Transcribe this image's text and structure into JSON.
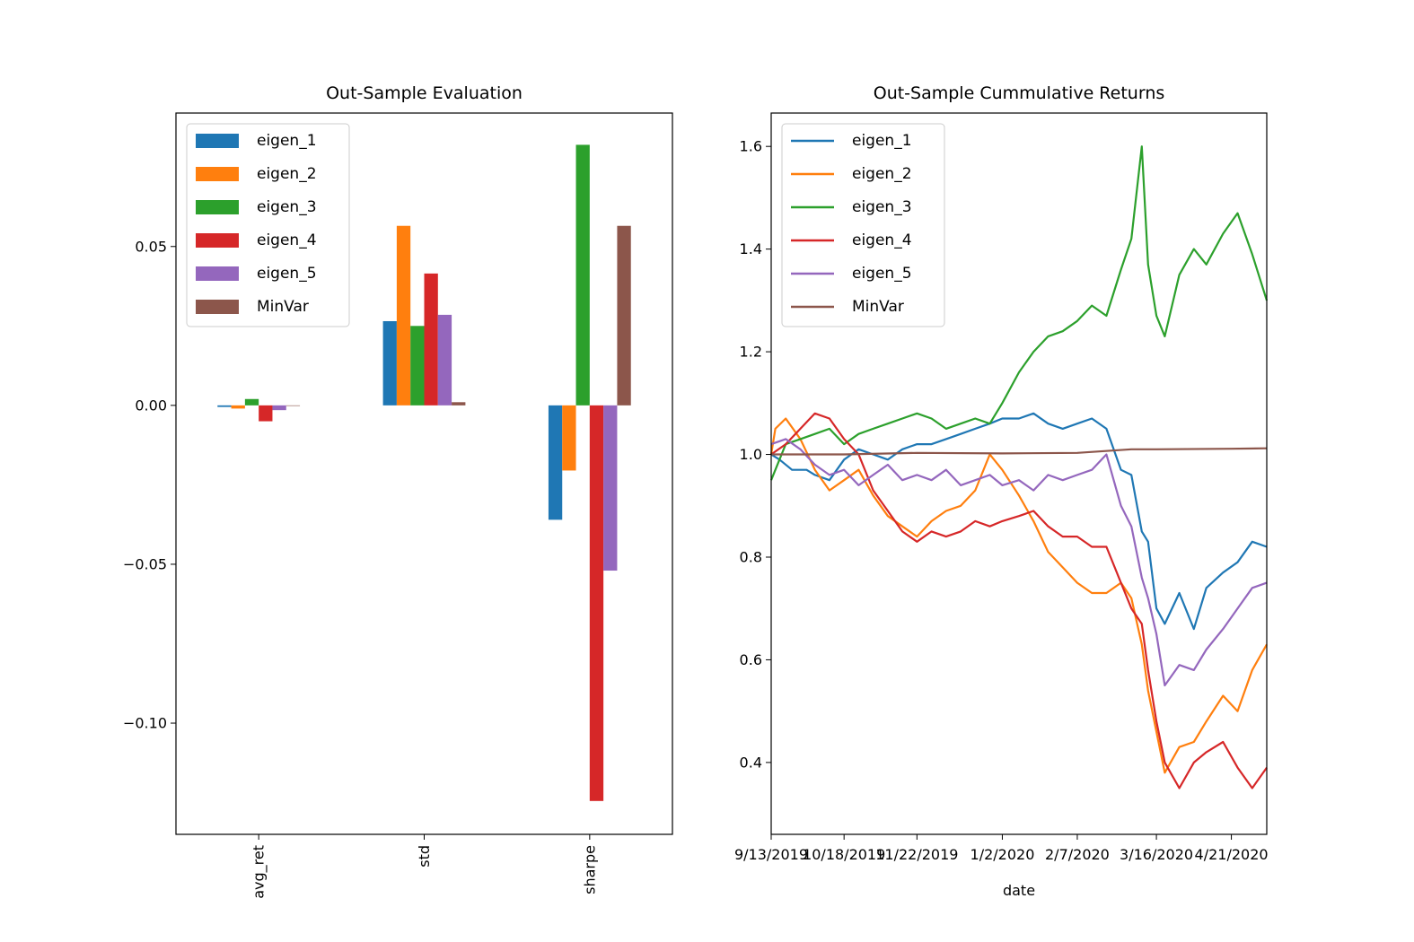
{
  "chart_data": [
    {
      "type": "bar",
      "title": "Out-Sample Evaluation",
      "xlabel": "",
      "ylabel": "",
      "categories": [
        "avg_ret",
        "std",
        "sharpe"
      ],
      "ylim": [
        -0.135,
        0.092
      ],
      "yticks": [
        0.05,
        0.0,
        -0.05,
        -0.1
      ],
      "ytick_labels": [
        "0.05",
        "0.00",
        "−0.05",
        "−0.10"
      ],
      "legend_position": "upper left",
      "grid": false,
      "series": [
        {
          "name": "eigen_1",
          "color": "#1f77b4",
          "values": [
            -0.0005,
            0.0265,
            -0.036
          ]
        },
        {
          "name": "eigen_2",
          "color": "#ff7f0e",
          "values": [
            -0.001,
            0.0565,
            -0.0205
          ]
        },
        {
          "name": "eigen_3",
          "color": "#2ca02c",
          "values": [
            0.002,
            0.025,
            0.082
          ]
        },
        {
          "name": "eigen_4",
          "color": "#d62728",
          "values": [
            -0.005,
            0.0415,
            -0.1245
          ]
        },
        {
          "name": "eigen_5",
          "color": "#9467bd",
          "values": [
            -0.0015,
            0.0285,
            -0.052
          ]
        },
        {
          "name": "MinVar",
          "color": "#8c564b",
          "values": [
            0.0,
            0.001,
            0.0565
          ]
        }
      ]
    },
    {
      "type": "line",
      "title": "Out-Sample Cummulative Returns",
      "xlabel": "date",
      "ylabel": "",
      "x_start": "9/13/2019",
      "x_end": "5/8/2020",
      "xticks": [
        "9/13/2019",
        "10/18/2019",
        "11/22/2019",
        "1/2/2020",
        "2/7/2020",
        "3/16/2020",
        "4/21/2020"
      ],
      "ylim": [
        0.26,
        1.665
      ],
      "yticks": [
        0.4,
        0.6,
        0.8,
        1.0,
        1.2,
        1.4,
        1.6
      ],
      "ytick_labels": [
        "0.4",
        "0.6",
        "0.8",
        "1.0",
        "1.2",
        "1.4",
        "1.6"
      ],
      "legend_position": "upper left",
      "grid": false,
      "series": [
        {
          "name": "eigen_1",
          "color": "#1f77b4",
          "points": [
            [
              "9/13/2019",
              1.0
            ],
            [
              "9/17/2019",
              0.99
            ],
            [
              "9/23/2019",
              0.97
            ],
            [
              "9/30/2019",
              0.97
            ],
            [
              "10/4/2019",
              0.96
            ],
            [
              "10/11/2019",
              0.95
            ],
            [
              "10/18/2019",
              0.99
            ],
            [
              "10/25/2019",
              1.01
            ],
            [
              "11/1/2019",
              1.0
            ],
            [
              "11/8/2019",
              0.99
            ],
            [
              "11/15/2019",
              1.01
            ],
            [
              "11/22/2019",
              1.02
            ],
            [
              "11/29/2019",
              1.02
            ],
            [
              "12/6/2019",
              1.03
            ],
            [
              "12/13/2019",
              1.04
            ],
            [
              "12/20/2019",
              1.05
            ],
            [
              "12/27/2019",
              1.06
            ],
            [
              "1/2/2020",
              1.07
            ],
            [
              "1/10/2020",
              1.07
            ],
            [
              "1/17/2020",
              1.08
            ],
            [
              "1/24/2020",
              1.06
            ],
            [
              "1/31/2020",
              1.05
            ],
            [
              "2/7/2020",
              1.06
            ],
            [
              "2/14/2020",
              1.07
            ],
            [
              "2/21/2020",
              1.05
            ],
            [
              "2/28/2020",
              0.97
            ],
            [
              "3/4/2020",
              0.96
            ],
            [
              "3/9/2020",
              0.85
            ],
            [
              "3/12/2020",
              0.83
            ],
            [
              "3/16/2020",
              0.7
            ],
            [
              "3/20/2020",
              0.67
            ],
            [
              "3/27/2020",
              0.73
            ],
            [
              "4/3/2020",
              0.66
            ],
            [
              "4/9/2020",
              0.74
            ],
            [
              "4/17/2020",
              0.77
            ],
            [
              "4/24/2020",
              0.79
            ],
            [
              "5/1/2020",
              0.83
            ],
            [
              "5/8/2020",
              0.82
            ]
          ]
        },
        {
          "name": "eigen_2",
          "color": "#ff7f0e",
          "points": [
            [
              "9/13/2019",
              1.0
            ],
            [
              "9/15/2019",
              1.05
            ],
            [
              "9/20/2019",
              1.07
            ],
            [
              "9/27/2019",
              1.03
            ],
            [
              "10/4/2019",
              0.97
            ],
            [
              "10/11/2019",
              0.93
            ],
            [
              "10/18/2019",
              0.95
            ],
            [
              "10/25/2019",
              0.97
            ],
            [
              "11/1/2019",
              0.92
            ],
            [
              "11/8/2019",
              0.88
            ],
            [
              "11/15/2019",
              0.86
            ],
            [
              "11/22/2019",
              0.84
            ],
            [
              "11/29/2019",
              0.87
            ],
            [
              "12/6/2019",
              0.89
            ],
            [
              "12/13/2019",
              0.9
            ],
            [
              "12/20/2019",
              0.93
            ],
            [
              "12/27/2019",
              1.0
            ],
            [
              "1/2/2020",
              0.97
            ],
            [
              "1/10/2020",
              0.92
            ],
            [
              "1/17/2020",
              0.87
            ],
            [
              "1/24/2020",
              0.81
            ],
            [
              "1/31/2020",
              0.78
            ],
            [
              "2/7/2020",
              0.75
            ],
            [
              "2/14/2020",
              0.73
            ],
            [
              "2/21/2020",
              0.73
            ],
            [
              "2/28/2020",
              0.75
            ],
            [
              "3/4/2020",
              0.72
            ],
            [
              "3/9/2020",
              0.63
            ],
            [
              "3/12/2020",
              0.54
            ],
            [
              "3/16/2020",
              0.46
            ],
            [
              "3/20/2020",
              0.38
            ],
            [
              "3/27/2020",
              0.43
            ],
            [
              "4/3/2020",
              0.44
            ],
            [
              "4/9/2020",
              0.48
            ],
            [
              "4/17/2020",
              0.53
            ],
            [
              "4/24/2020",
              0.5
            ],
            [
              "5/1/2020",
              0.58
            ],
            [
              "5/8/2020",
              0.63
            ]
          ]
        },
        {
          "name": "eigen_3",
          "color": "#2ca02c",
          "points": [
            [
              "9/13/2019",
              0.95
            ],
            [
              "9/20/2019",
              1.02
            ],
            [
              "9/27/2019",
              1.03
            ],
            [
              "10/4/2019",
              1.04
            ],
            [
              "10/11/2019",
              1.05
            ],
            [
              "10/18/2019",
              1.02
            ],
            [
              "10/25/2019",
              1.04
            ],
            [
              "11/1/2019",
              1.05
            ],
            [
              "11/8/2019",
              1.06
            ],
            [
              "11/15/2019",
              1.07
            ],
            [
              "11/22/2019",
              1.08
            ],
            [
              "11/29/2019",
              1.07
            ],
            [
              "12/6/2019",
              1.05
            ],
            [
              "12/13/2019",
              1.06
            ],
            [
              "12/20/2019",
              1.07
            ],
            [
              "12/27/2019",
              1.06
            ],
            [
              "1/2/2020",
              1.1
            ],
            [
              "1/10/2020",
              1.16
            ],
            [
              "1/17/2020",
              1.2
            ],
            [
              "1/24/2020",
              1.23
            ],
            [
              "1/31/2020",
              1.24
            ],
            [
              "2/7/2020",
              1.26
            ],
            [
              "2/14/2020",
              1.29
            ],
            [
              "2/21/2020",
              1.27
            ],
            [
              "2/28/2020",
              1.36
            ],
            [
              "3/4/2020",
              1.42
            ],
            [
              "3/9/2020",
              1.6
            ],
            [
              "3/12/2020",
              1.37
            ],
            [
              "3/16/2020",
              1.27
            ],
            [
              "3/20/2020",
              1.23
            ],
            [
              "3/27/2020",
              1.35
            ],
            [
              "4/3/2020",
              1.4
            ],
            [
              "4/9/2020",
              1.37
            ],
            [
              "4/17/2020",
              1.43
            ],
            [
              "4/24/2020",
              1.47
            ],
            [
              "5/1/2020",
              1.39
            ],
            [
              "5/8/2020",
              1.3
            ]
          ]
        },
        {
          "name": "eigen_4",
          "color": "#d62728",
          "points": [
            [
              "9/13/2019",
              1.0
            ],
            [
              "9/20/2019",
              1.02
            ],
            [
              "9/27/2019",
              1.05
            ],
            [
              "10/4/2019",
              1.08
            ],
            [
              "10/11/2019",
              1.07
            ],
            [
              "10/18/2019",
              1.03
            ],
            [
              "10/25/2019",
              1.0
            ],
            [
              "11/1/2019",
              0.93
            ],
            [
              "11/8/2019",
              0.89
            ],
            [
              "11/15/2019",
              0.85
            ],
            [
              "11/22/2019",
              0.83
            ],
            [
              "11/29/2019",
              0.85
            ],
            [
              "12/6/2019",
              0.84
            ],
            [
              "12/13/2019",
              0.85
            ],
            [
              "12/20/2019",
              0.87
            ],
            [
              "12/27/2019",
              0.86
            ],
            [
              "1/2/2020",
              0.87
            ],
            [
              "1/10/2020",
              0.88
            ],
            [
              "1/17/2020",
              0.89
            ],
            [
              "1/24/2020",
              0.86
            ],
            [
              "1/31/2020",
              0.84
            ],
            [
              "2/7/2020",
              0.84
            ],
            [
              "2/14/2020",
              0.82
            ],
            [
              "2/21/2020",
              0.82
            ],
            [
              "2/28/2020",
              0.75
            ],
            [
              "3/4/2020",
              0.7
            ],
            [
              "3/9/2020",
              0.67
            ],
            [
              "3/12/2020",
              0.58
            ],
            [
              "3/16/2020",
              0.48
            ],
            [
              "3/20/2020",
              0.4
            ],
            [
              "3/27/2020",
              0.35
            ],
            [
              "4/3/2020",
              0.4
            ],
            [
              "4/9/2020",
              0.42
            ],
            [
              "4/17/2020",
              0.44
            ],
            [
              "4/24/2020",
              0.39
            ],
            [
              "5/1/2020",
              0.35
            ],
            [
              "5/8/2020",
              0.39
            ]
          ]
        },
        {
          "name": "eigen_5",
          "color": "#9467bd",
          "points": [
            [
              "9/13/2019",
              1.02
            ],
            [
              "9/20/2019",
              1.03
            ],
            [
              "9/27/2019",
              1.01
            ],
            [
              "10/4/2019",
              0.98
            ],
            [
              "10/11/2019",
              0.96
            ],
            [
              "10/18/2019",
              0.97
            ],
            [
              "10/25/2019",
              0.94
            ],
            [
              "11/1/2019",
              0.96
            ],
            [
              "11/8/2019",
              0.98
            ],
            [
              "11/15/2019",
              0.95
            ],
            [
              "11/22/2019",
              0.96
            ],
            [
              "11/29/2019",
              0.95
            ],
            [
              "12/6/2019",
              0.97
            ],
            [
              "12/13/2019",
              0.94
            ],
            [
              "12/20/2019",
              0.95
            ],
            [
              "12/27/2019",
              0.96
            ],
            [
              "1/2/2020",
              0.94
            ],
            [
              "1/10/2020",
              0.95
            ],
            [
              "1/17/2020",
              0.93
            ],
            [
              "1/24/2020",
              0.96
            ],
            [
              "1/31/2020",
              0.95
            ],
            [
              "2/7/2020",
              0.96
            ],
            [
              "2/14/2020",
              0.97
            ],
            [
              "2/21/2020",
              1.0
            ],
            [
              "2/28/2020",
              0.9
            ],
            [
              "3/4/2020",
              0.86
            ],
            [
              "3/9/2020",
              0.76
            ],
            [
              "3/12/2020",
              0.72
            ],
            [
              "3/16/2020",
              0.65
            ],
            [
              "3/20/2020",
              0.55
            ],
            [
              "3/27/2020",
              0.59
            ],
            [
              "4/3/2020",
              0.58
            ],
            [
              "4/9/2020",
              0.62
            ],
            [
              "4/17/2020",
              0.66
            ],
            [
              "4/24/2020",
              0.7
            ],
            [
              "5/1/2020",
              0.74
            ],
            [
              "5/8/2020",
              0.75
            ]
          ]
        },
        {
          "name": "MinVar",
          "color": "#8c564b",
          "points": [
            [
              "9/13/2019",
              1.0
            ],
            [
              "10/18/2019",
              1.0
            ],
            [
              "11/22/2019",
              1.003
            ],
            [
              "1/2/2020",
              1.002
            ],
            [
              "2/7/2020",
              1.003
            ],
            [
              "3/4/2020",
              1.01
            ],
            [
              "3/16/2020",
              1.01
            ],
            [
              "4/21/2020",
              1.011
            ],
            [
              "5/8/2020",
              1.012
            ]
          ]
        }
      ]
    }
  ]
}
